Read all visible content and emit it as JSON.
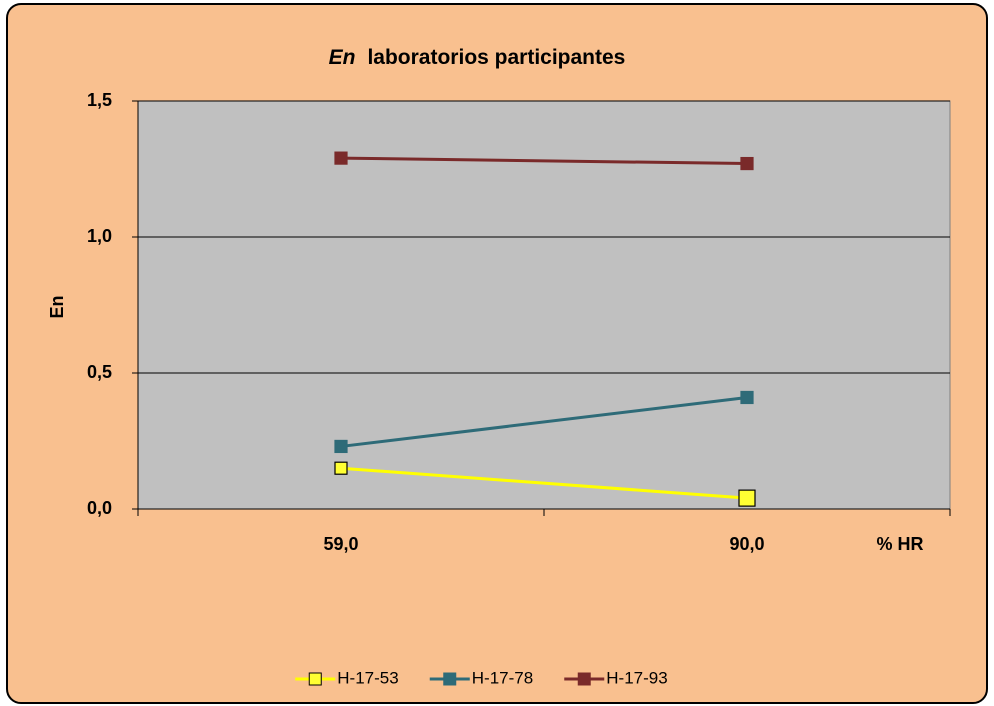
{
  "chart_data": {
    "type": "line",
    "title": [
      "En",
      "laboratorios participantes"
    ],
    "y_label": "En",
    "x_label": "% HR",
    "categories": [
      "59,0",
      "90,0"
    ],
    "series": [
      {
        "name": "H-17-53",
        "color": "#ffff00",
        "marker_color": "#ffff33",
        "values": [
          0.15,
          0.04
        ]
      },
      {
        "name": "H-17-78",
        "color": "#2e6b78",
        "marker_color": "#2e6b78",
        "values": [
          0.23,
          0.41
        ]
      },
      {
        "name": "H-17-93",
        "color": "#7a2a2a",
        "marker_color": "#7a2a2a",
        "values": [
          1.29,
          1.27
        ]
      }
    ],
    "ylim": [
      0,
      1.5
    ],
    "yticks": [
      {
        "value": 0,
        "label": "0,0"
      },
      {
        "value": 0.5,
        "label": "0,5"
      },
      {
        "value": 1,
        "label": "1,0"
      },
      {
        "value": 1.5,
        "label": "1,5"
      }
    ],
    "grid": true,
    "legend": "bottom"
  }
}
